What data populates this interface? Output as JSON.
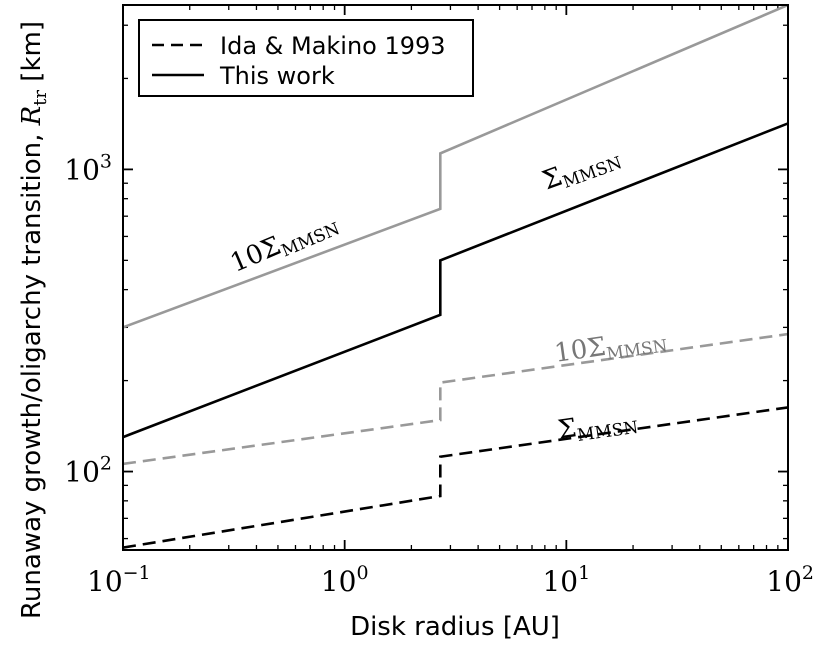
{
  "chart_data": {
    "type": "line",
    "xscale": "log",
    "yscale": "log",
    "xlim": [
      0.1,
      100
    ],
    "ylim": [
      55,
      3500
    ],
    "xlabel": "Disk radius [AU]",
    "ylabel_prefix": "Runaway growth/oligarchy transition, ",
    "ylabel_symbol": "R",
    "ylabel_sub": "tr",
    "ylabel_suffix": " [km]",
    "x_ticks": [
      {
        "value": 0.1,
        "base": "10",
        "exp": "−1"
      },
      {
        "value": 1,
        "base": "10",
        "exp": "0"
      },
      {
        "value": 10,
        "base": "10",
        "exp": "1"
      },
      {
        "value": 100,
        "base": "10",
        "exp": "2"
      }
    ],
    "y_ticks": [
      {
        "value": 100,
        "base": "10",
        "exp": "2"
      },
      {
        "value": 1000,
        "base": "10",
        "exp": "3"
      }
    ],
    "legend": {
      "placement": "top-left",
      "entries": [
        {
          "label": "Ida & Makino 1993",
          "style": "dashed"
        },
        {
          "label": "This work",
          "style": "solid"
        }
      ]
    },
    "series": [
      {
        "color": "#999999",
        "style": "solid",
        "x": [
          0.1,
          2.7,
          2.7,
          100
        ],
        "y": [
          300,
          740,
          1130,
          3500
        ]
      },
      {
        "color": "#000000",
        "style": "solid",
        "x": [
          0.1,
          2.7,
          2.7,
          100
        ],
        "y": [
          130,
          330,
          500,
          1420
        ]
      },
      {
        "color": "#999999",
        "style": "dashed",
        "x": [
          0.1,
          2.7,
          2.7,
          100
        ],
        "y": [
          106,
          148,
          197,
          285
        ]
      },
      {
        "color": "#000000",
        "style": "dashed",
        "x": [
          0.1,
          2.7,
          2.7,
          100
        ],
        "y": [
          56,
          83,
          112,
          163
        ]
      }
    ],
    "annotations": [
      {
        "base": "10Σ",
        "sub": "MMSN",
        "x": 0.55,
        "y": 540,
        "angle": -23,
        "color": "#000000"
      },
      {
        "base": "Σ",
        "sub": "MMSN",
        "x": 12,
        "y": 950,
        "angle": -20,
        "color": "#000000"
      },
      {
        "base": "10Σ",
        "sub": "MMSN",
        "x": 16,
        "y": 245,
        "angle": -8,
        "color": "#777777"
      },
      {
        "base": "Σ",
        "sub": "MMSN",
        "x": 14,
        "y": 134,
        "angle": -8,
        "color": "#000000"
      }
    ]
  }
}
